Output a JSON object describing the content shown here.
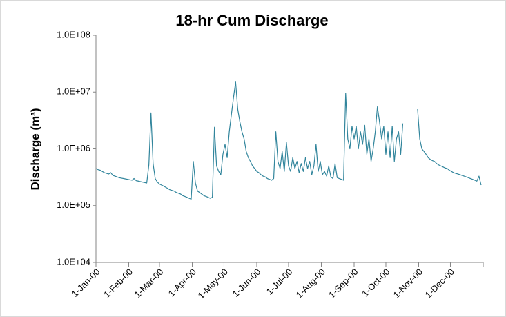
{
  "chart_data": {
    "type": "line",
    "title": "18-hr Cum Discharge",
    "y_label": "Discharge (m³)",
    "log_scale": true,
    "grid": false,
    "ylim": [
      10000,
      100000000
    ],
    "yticks": [
      {
        "value": 10000,
        "label": "1.0E+04"
      },
      {
        "value": 100000,
        "label": "1.0E+05"
      },
      {
        "value": 1000000,
        "label": "1.0E+06"
      },
      {
        "value": 10000000,
        "label": "1.0E+07"
      },
      {
        "value": 100000000,
        "label": "1.0E+08"
      }
    ],
    "xlim": [
      "2000-01-01",
      "2001-01-01"
    ],
    "xticks": [
      {
        "value": "2000-01-01",
        "label": "1-Jan-00"
      },
      {
        "value": "2000-02-01",
        "label": "1-Feb-00"
      },
      {
        "value": "2000-03-01",
        "label": "1-Mar-00"
      },
      {
        "value": "2000-04-01",
        "label": "1-Apr-00"
      },
      {
        "value": "2000-05-01",
        "label": "1-May-00"
      },
      {
        "value": "2000-06-01",
        "label": "1-Jun-00"
      },
      {
        "value": "2000-07-01",
        "label": "1-Jul-00"
      },
      {
        "value": "2000-08-01",
        "label": "1-Aug-00"
      },
      {
        "value": "2000-09-01",
        "label": "1-Sep-00"
      },
      {
        "value": "2000-10-01",
        "label": "1-Oct-00"
      },
      {
        "value": "2000-11-01",
        "label": "1-Nov-00"
      },
      {
        "value": "2000-12-01",
        "label": "1-Dec-00"
      }
    ],
    "x": [
      "2000-01-01",
      "2000-01-03",
      "2000-01-05",
      "2000-01-07",
      "2000-01-09",
      "2000-01-11",
      "2000-01-13",
      "2000-01-15",
      "2000-01-17",
      "2000-01-19",
      "2000-01-21",
      "2000-01-23",
      "2000-01-25",
      "2000-01-27",
      "2000-01-29",
      "2000-01-31",
      "2000-02-02",
      "2000-02-04",
      "2000-02-06",
      "2000-02-08",
      "2000-02-10",
      "2000-02-12",
      "2000-02-14",
      "2000-02-16",
      "2000-02-18",
      "2000-02-20",
      "2000-02-22",
      "2000-02-24",
      "2000-02-26",
      "2000-02-28",
      "2000-03-01",
      "2000-03-03",
      "2000-03-05",
      "2000-03-07",
      "2000-03-09",
      "2000-03-11",
      "2000-03-13",
      "2000-03-15",
      "2000-03-17",
      "2000-03-19",
      "2000-03-21",
      "2000-03-23",
      "2000-03-25",
      "2000-03-27",
      "2000-03-29",
      "2000-03-31",
      "2000-04-02",
      "2000-04-04",
      "2000-04-06",
      "2000-04-08",
      "2000-04-10",
      "2000-04-12",
      "2000-04-14",
      "2000-04-16",
      "2000-04-18",
      "2000-04-20",
      "2000-04-22",
      "2000-04-24",
      "2000-04-26",
      "2000-04-28",
      "2000-04-30",
      "2000-05-02",
      "2000-05-04",
      "2000-05-06",
      "2000-05-08",
      "2000-05-10",
      "2000-05-12",
      "2000-05-14",
      "2000-05-16",
      "2000-05-18",
      "2000-05-20",
      "2000-05-22",
      "2000-05-24",
      "2000-05-26",
      "2000-05-28",
      "2000-05-30",
      "2000-06-01",
      "2000-06-03",
      "2000-06-05",
      "2000-06-07",
      "2000-06-09",
      "2000-06-11",
      "2000-06-13",
      "2000-06-15",
      "2000-06-17",
      "2000-06-19",
      "2000-06-21",
      "2000-06-23",
      "2000-06-25",
      "2000-06-27",
      "2000-06-29",
      "2000-07-01",
      "2000-07-03",
      "2000-07-05",
      "2000-07-07",
      "2000-07-09",
      "2000-07-11",
      "2000-07-13",
      "2000-07-15",
      "2000-07-17",
      "2000-07-19",
      "2000-07-21",
      "2000-07-23",
      "2000-07-25",
      "2000-07-27",
      "2000-07-29",
      "2000-07-31",
      "2000-08-02",
      "2000-08-04",
      "2000-08-06",
      "2000-08-08",
      "2000-08-10",
      "2000-08-12",
      "2000-08-14",
      "2000-08-16",
      "2000-08-18",
      "2000-08-20",
      "2000-08-22",
      "2000-08-24",
      "2000-08-26",
      "2000-08-28",
      "2000-08-30",
      "2000-09-01",
      "2000-09-03",
      "2000-09-05",
      "2000-09-07",
      "2000-09-09",
      "2000-09-11",
      "2000-09-13",
      "2000-09-15",
      "2000-09-17",
      "2000-09-19",
      "2000-09-21",
      "2000-09-23",
      "2000-09-25",
      "2000-09-27",
      "2000-09-29",
      "2000-10-01",
      "2000-10-03",
      "2000-10-05",
      "2000-10-07",
      "2000-10-09",
      "2000-10-11",
      "2000-10-13",
      "2000-10-15",
      "2000-10-17",
      "2000-10-19",
      "2000-10-31",
      "2000-11-02",
      "2000-11-04",
      "2000-11-06",
      "2000-11-08",
      "2000-11-10",
      "2000-11-12",
      "2000-11-14",
      "2000-11-16",
      "2000-11-18",
      "2000-11-20",
      "2000-11-22",
      "2000-11-24",
      "2000-11-26",
      "2000-11-28",
      "2000-11-30",
      "2000-12-02",
      "2000-12-04",
      "2000-12-06",
      "2000-12-08",
      "2000-12-10",
      "2000-12-12",
      "2000-12-14",
      "2000-12-16",
      "2000-12-18",
      "2000-12-20",
      "2000-12-22",
      "2000-12-24",
      "2000-12-26",
      "2000-12-28",
      "2000-12-30"
    ],
    "series": [
      {
        "color": "#31859c",
        "values": [
          450000,
          430000,
          420000,
          400000,
          380000,
          370000,
          360000,
          380000,
          340000,
          330000,
          320000,
          310000,
          305000,
          300000,
          295000,
          290000,
          285000,
          280000,
          300000,
          275000,
          270000,
          265000,
          260000,
          255000,
          250000,
          520000,
          4300000,
          550000,
          300000,
          260000,
          240000,
          230000,
          220000,
          210000,
          200000,
          190000,
          185000,
          180000,
          170000,
          165000,
          160000,
          150000,
          145000,
          140000,
          135000,
          130000,
          600000,
          250000,
          180000,
          170000,
          160000,
          150000,
          145000,
          140000,
          135000,
          140000,
          2400000,
          500000,
          400000,
          350000,
          800000,
          1200000,
          700000,
          2000000,
          4000000,
          8000000,
          15000000,
          5000000,
          3000000,
          2000000,
          1500000,
          900000,
          700000,
          600000,
          500000,
          450000,
          400000,
          380000,
          350000,
          330000,
          320000,
          300000,
          290000,
          280000,
          300000,
          2000000,
          600000,
          450000,
          900000,
          400000,
          1300000,
          500000,
          400000,
          700000,
          450000,
          600000,
          380000,
          550000,
          400000,
          700000,
          450000,
          600000,
          350000,
          500000,
          1200000,
          400000,
          600000,
          350000,
          400000,
          330000,
          500000,
          320000,
          300000,
          550000,
          310000,
          300000,
          290000,
          280000,
          9500000,
          1500000,
          1000000,
          2500000,
          1500000,
          2500000,
          1000000,
          2000000,
          1200000,
          2600000,
          800000,
          1500000,
          600000,
          1000000,
          2000000,
          5500000,
          3000000,
          1500000,
          2500000,
          800000,
          2000000,
          700000,
          2500000,
          600000,
          1500000,
          2000000,
          800000,
          2800000,
          null,
          5000000,
          1500000,
          1000000,
          900000,
          800000,
          700000,
          650000,
          620000,
          600000,
          550000,
          520000,
          500000,
          480000,
          460000,
          450000,
          420000,
          400000,
          380000,
          370000,
          360000,
          350000,
          340000,
          330000,
          320000,
          310000,
          300000,
          290000,
          280000,
          270000,
          330000,
          230000
        ]
      }
    ]
  }
}
